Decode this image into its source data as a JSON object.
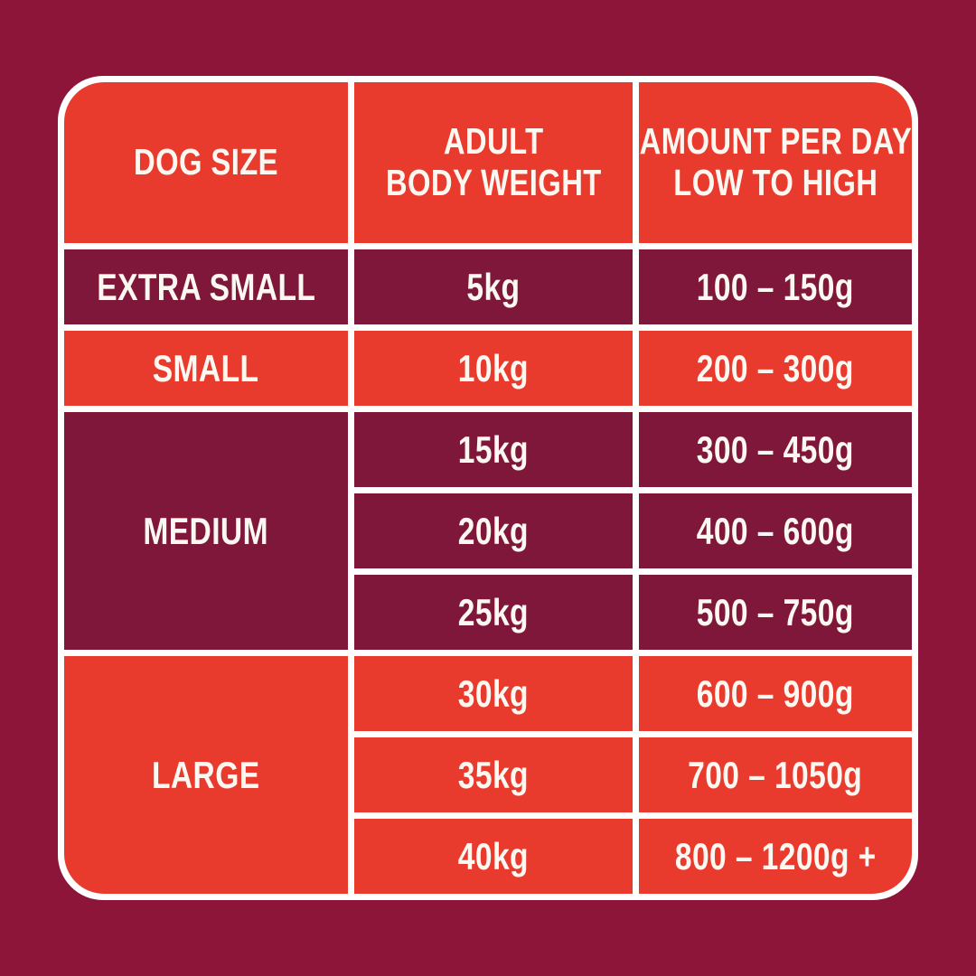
{
  "colors": {
    "background": "#8C1539",
    "row_dark": "#7E173A",
    "row_red": "#E93A2E",
    "grid": "#FFFFFF",
    "text": "#FBF8F2"
  },
  "header": {
    "col1": "DOG SIZE",
    "col2_line1": "ADULT",
    "col2_line2": "BODY WEIGHT",
    "col3_line1": "AMOUNT PER DAY",
    "col3_line2": "LOW TO HIGH"
  },
  "groups": [
    {
      "size": "EXTRA SMALL",
      "tone": "maroon",
      "rows": [
        {
          "weight": "5kg",
          "amount": "100 – 150g"
        }
      ]
    },
    {
      "size": "SMALL",
      "tone": "red",
      "rows": [
        {
          "weight": "10kg",
          "amount": "200 – 300g"
        }
      ]
    },
    {
      "size": "MEDIUM",
      "tone": "maroon",
      "rows": [
        {
          "weight": "15kg",
          "amount": "300 – 450g"
        },
        {
          "weight": "20kg",
          "amount": "400 – 600g"
        },
        {
          "weight": "25kg",
          "amount": "500 – 750g"
        }
      ]
    },
    {
      "size": "LARGE",
      "tone": "red",
      "rows": [
        {
          "weight": "30kg",
          "amount": "600 – 900g"
        },
        {
          "weight": "35kg",
          "amount": "700 – 1050g"
        },
        {
          "weight": "40kg",
          "amount": "800 – 1200g +"
        }
      ]
    }
  ],
  "chart_data": {
    "type": "table",
    "columns": [
      "DOG SIZE",
      "ADULT BODY WEIGHT",
      "AMOUNT PER DAY LOW TO HIGH"
    ],
    "rows": [
      [
        "EXTRA SMALL",
        "5kg",
        "100 – 150g"
      ],
      [
        "SMALL",
        "10kg",
        "200 – 300g"
      ],
      [
        "MEDIUM",
        "15kg",
        "300 – 450g"
      ],
      [
        "MEDIUM",
        "20kg",
        "400 – 600g"
      ],
      [
        "MEDIUM",
        "25kg",
        "500 – 750g"
      ],
      [
        "LARGE",
        "30kg",
        "600 – 900g"
      ],
      [
        "LARGE",
        "35kg",
        "700 – 1050g"
      ],
      [
        "LARGE",
        "40kg",
        "800 – 1200g +"
      ]
    ],
    "legend_position": "none",
    "grid": true
  }
}
